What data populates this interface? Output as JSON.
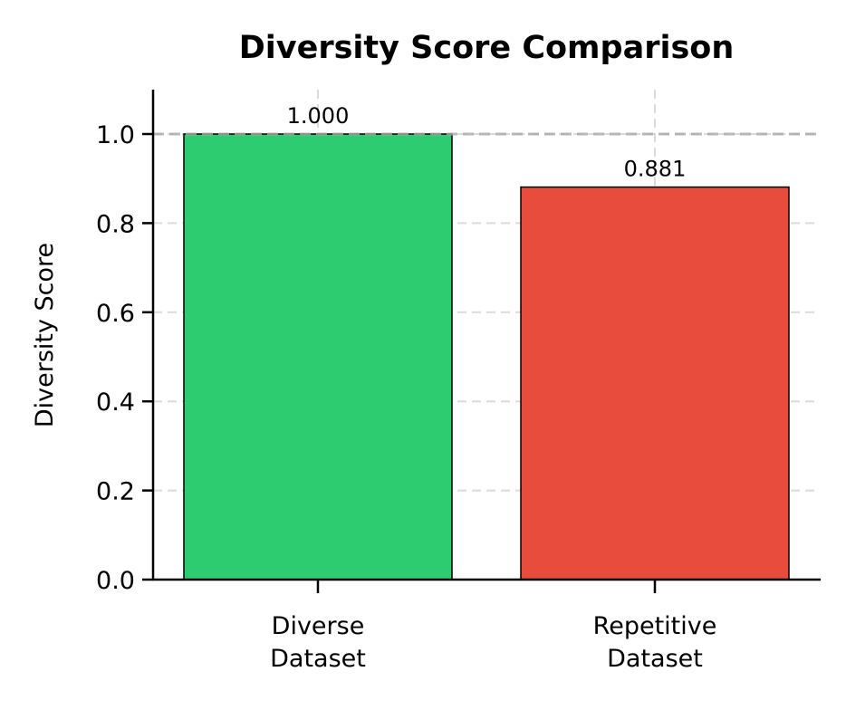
{
  "chart_data": {
    "type": "bar",
    "title": "Diversity Score Comparison",
    "xlabel": "",
    "ylabel": "Diversity Score",
    "categories": [
      "Diverse\nDataset",
      "Repetitive\nDataset"
    ],
    "category_lines": [
      [
        "Diverse",
        "Dataset"
      ],
      [
        "Repetitive",
        "Dataset"
      ]
    ],
    "values": [
      1.0,
      0.881
    ],
    "value_labels": [
      "1.000",
      "0.881"
    ],
    "colors": [
      "#2ecc71",
      "#e74c3c"
    ],
    "ylim": [
      0,
      1.1
    ],
    "yticks": [
      "0.0",
      "0.2",
      "0.4",
      "0.6",
      "0.8",
      "1.0"
    ],
    "reference_line": {
      "y": 1.0,
      "style": "dashed",
      "color": "#aaaaaa"
    },
    "grid": true,
    "legend": null
  }
}
